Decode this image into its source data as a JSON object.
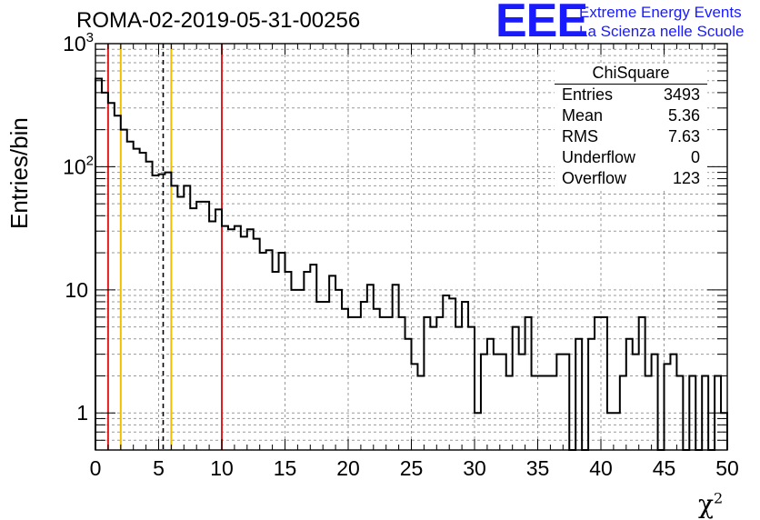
{
  "chart_data": {
    "type": "histogram",
    "title": "ROMA-02-2019-05-31-00256",
    "xlabel": "χ",
    "xlabel_sup": "2",
    "ylabel": "Entries/bin",
    "xlim": [
      0,
      50
    ],
    "ylim": [
      0.5,
      1000
    ],
    "yscale": "log",
    "grid": true,
    "bin_width": 0.5,
    "bins": [
      [
        0,
        520
      ],
      [
        0.5,
        400
      ],
      [
        1,
        330
      ],
      [
        1.5,
        260
      ],
      [
        2,
        200
      ],
      [
        2.5,
        160
      ],
      [
        3,
        140
      ],
      [
        3.5,
        130
      ],
      [
        4,
        110
      ],
      [
        4.5,
        85
      ],
      [
        5,
        87
      ],
      [
        5.5,
        90
      ],
      [
        6,
        70
      ],
      [
        6.5,
        57
      ],
      [
        7,
        70
      ],
      [
        7.5,
        46
      ],
      [
        8,
        52
      ],
      [
        8.5,
        52
      ],
      [
        9,
        36
      ],
      [
        9.5,
        45
      ],
      [
        10,
        33
      ],
      [
        10.5,
        31
      ],
      [
        11,
        33
      ],
      [
        11.5,
        27
      ],
      [
        12,
        31
      ],
      [
        12.5,
        26
      ],
      [
        13,
        20
      ],
      [
        13.5,
        21
      ],
      [
        14,
        14
      ],
      [
        14.5,
        20
      ],
      [
        15,
        14
      ],
      [
        15.5,
        10
      ],
      [
        16,
        10
      ],
      [
        16.5,
        14
      ],
      [
        17,
        16
      ],
      [
        17.5,
        8
      ],
      [
        18,
        8
      ],
      [
        18.5,
        13
      ],
      [
        19,
        10
      ],
      [
        19.5,
        7
      ],
      [
        20,
        6
      ],
      [
        20.5,
        6
      ],
      [
        21,
        8
      ],
      [
        21.5,
        11
      ],
      [
        22,
        7
      ],
      [
        22.5,
        6
      ],
      [
        23,
        6
      ],
      [
        23.5,
        11
      ],
      [
        24,
        6
      ],
      [
        24.5,
        4
      ],
      [
        25,
        2.5
      ],
      [
        25.5,
        2
      ],
      [
        26,
        6
      ],
      [
        26.5,
        5
      ],
      [
        27,
        6
      ],
      [
        27.5,
        9
      ],
      [
        28,
        8.5
      ],
      [
        28.5,
        5
      ],
      [
        29,
        8
      ],
      [
        29.5,
        5
      ],
      [
        30,
        1
      ],
      [
        30.5,
        3
      ],
      [
        31,
        4
      ],
      [
        31.5,
        3
      ],
      [
        32,
        3
      ],
      [
        32.5,
        2
      ],
      [
        33,
        5
      ],
      [
        33.5,
        3
      ],
      [
        34,
        6
      ],
      [
        34.5,
        2
      ],
      [
        35,
        2
      ],
      [
        35.5,
        2
      ],
      [
        36,
        2
      ],
      [
        36.5,
        3
      ],
      [
        37,
        3
      ],
      [
        37.5,
        0
      ],
      [
        38,
        4
      ],
      [
        38.5,
        0
      ],
      [
        39,
        4
      ],
      [
        39.5,
        6
      ],
      [
        40,
        6
      ],
      [
        40.5,
        1
      ],
      [
        41,
        1
      ],
      [
        41.5,
        2
      ],
      [
        42,
        4
      ],
      [
        42.5,
        3
      ],
      [
        43,
        6
      ],
      [
        43.5,
        2
      ],
      [
        44,
        3
      ],
      [
        44.5,
        0
      ],
      [
        45,
        2.5
      ],
      [
        45.5,
        3
      ],
      [
        46,
        2
      ],
      [
        46.5,
        0
      ],
      [
        47,
        2
      ],
      [
        47.5,
        0
      ],
      [
        48,
        2
      ],
      [
        48.5,
        0
      ],
      [
        49,
        2
      ],
      [
        49.5,
        1
      ]
    ],
    "vertical_lines": [
      {
        "x": 1.0,
        "color": "#e02020",
        "style": "solid"
      },
      {
        "x": 2.0,
        "color": "#f0c000",
        "style": "solid"
      },
      {
        "x": 5.36,
        "color": "#000000",
        "style": "dashed"
      },
      {
        "x": 6.0,
        "color": "#f0c000",
        "style": "solid"
      },
      {
        "x": 10.0,
        "color": "#e02020",
        "style": "solid"
      }
    ],
    "x_ticks": [
      0,
      5,
      10,
      15,
      20,
      25,
      30,
      35,
      40,
      45,
      50
    ],
    "y_ticks": [
      {
        "value": 1,
        "label": "1"
      },
      {
        "value": 10,
        "label": "10"
      },
      {
        "value": 100,
        "label": "10",
        "sup": "2"
      },
      {
        "value": 1000,
        "label": "10",
        "sup": "3"
      }
    ],
    "stats": {
      "title": "ChiSquare",
      "rows": [
        {
          "label": "Entries",
          "value": "3493"
        },
        {
          "label": "Mean",
          "value": "5.36"
        },
        {
          "label": "RMS",
          "value": "7.63"
        },
        {
          "label": "Underflow",
          "value": "0"
        },
        {
          "label": "Overflow",
          "value": "123"
        }
      ]
    }
  },
  "logo": {
    "mark": "EEE",
    "line1": "Extreme Energy Events",
    "line2": "La Scienza nelle Scuole",
    "color": "#1a1aff"
  }
}
